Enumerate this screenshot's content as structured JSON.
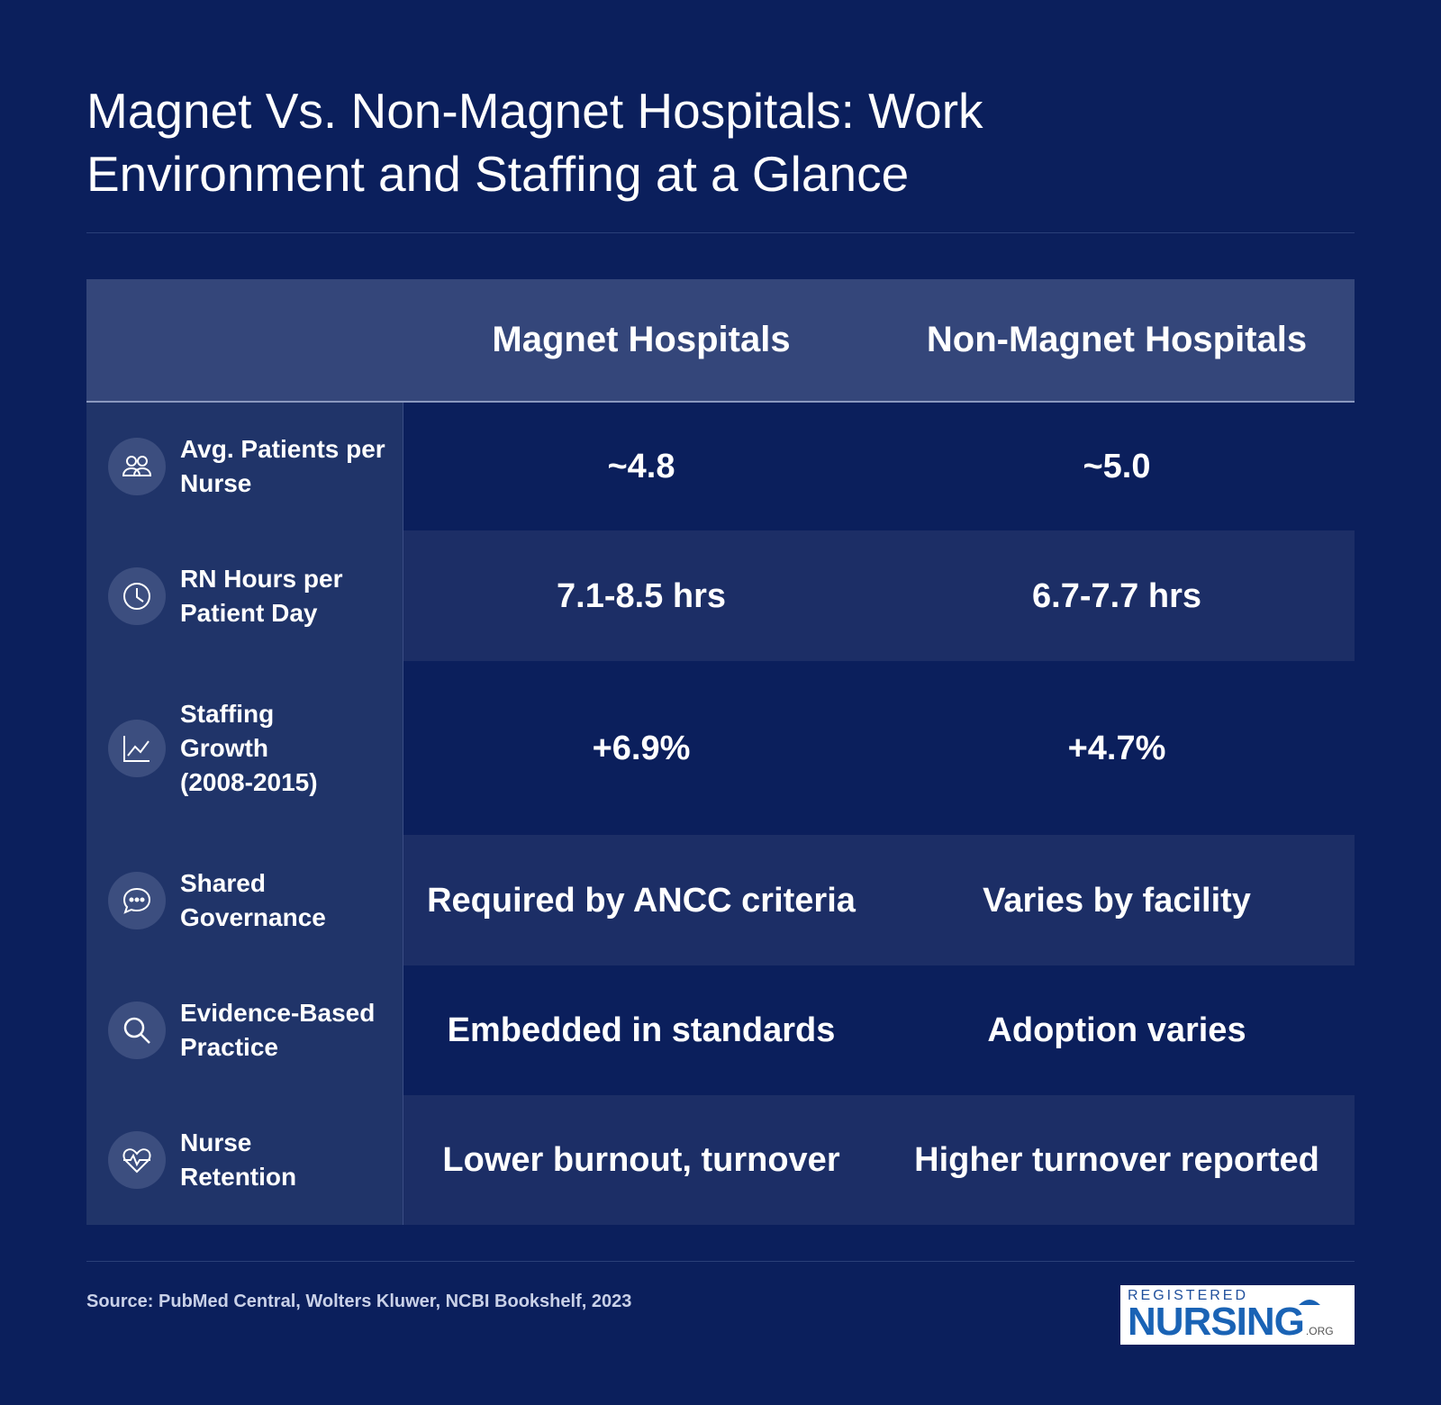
{
  "title": "Magnet Vs. Non-Magnet Hospitals: Work Environment and Staffing at a Glance",
  "table": {
    "headers": [
      "",
      "Magnet Hospitals",
      "Non-Magnet Hospitals"
    ],
    "rows": [
      {
        "icon": "people-icon",
        "label": "Avg. Patients per Nurse",
        "magnet": "~4.8",
        "non_magnet": "~5.0"
      },
      {
        "icon": "clock-icon",
        "label": "RN Hours per Patient Day",
        "magnet": "7.1-8.5 hrs",
        "non_magnet": "6.7-7.7 hrs"
      },
      {
        "icon": "line-chart-icon",
        "label": "Staffing Growth (2008-2015)",
        "magnet": "+6.9%",
        "non_magnet": "+4.7%"
      },
      {
        "icon": "chat-bubble-icon",
        "label": "Shared Governance",
        "magnet": "Required by ANCC criteria",
        "non_magnet": "Varies by facility"
      },
      {
        "icon": "search-icon",
        "label": "Evidence-Based Practice",
        "magnet": "Embedded in standards",
        "non_magnet": "Adoption varies"
      },
      {
        "icon": "heartbeat-icon",
        "label": "Nurse Retention",
        "magnet": "Lower burnout, turnover",
        "non_magnet": "Higher turnover reported"
      }
    ]
  },
  "source": "Source: PubMed Central, Wolters Kluwer, NCBI Bookshelf, 2023",
  "logo": {
    "top": "REGISTERED",
    "main": "NURSING",
    "suffix": ".ORG"
  },
  "colors": {
    "background": "#0b1f5c",
    "header": "#34467a",
    "label_column": "#203469",
    "alt_row": "#1c2e66"
  }
}
